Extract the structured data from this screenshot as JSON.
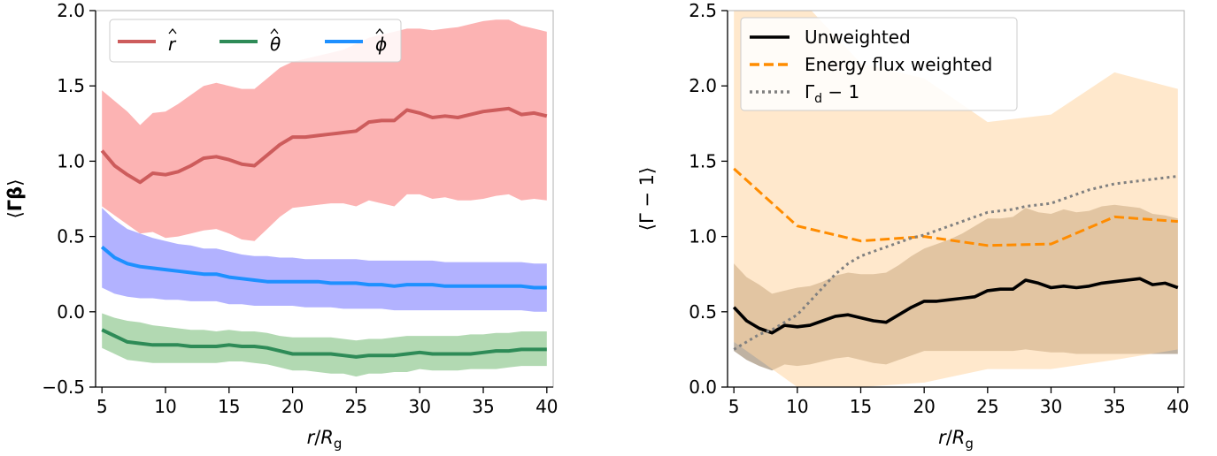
{
  "chart_data": [
    {
      "type": "line",
      "xlabel": "r/R_g",
      "ylabel": "⟨Γβ⟩",
      "xlim": [
        4.5,
        40.5
      ],
      "ylim": [
        -0.5,
        2.0
      ],
      "xticks": [
        5,
        10,
        15,
        20,
        25,
        30,
        35,
        40
      ],
      "yticks": [
        -0.5,
        0.0,
        0.5,
        1.0,
        1.5,
        2.0
      ],
      "ytick_labels": [
        "−0.5",
        "0.0",
        "0.5",
        "1.0",
        "1.5",
        "2.0"
      ],
      "legend_location": "top-left",
      "legend_columns": 3,
      "x": [
        5,
        6,
        7,
        8,
        9,
        10,
        11,
        12,
        13,
        14,
        15,
        16,
        17,
        18,
        19,
        20,
        21,
        22,
        23,
        24,
        25,
        26,
        27,
        28,
        29,
        30,
        31,
        32,
        33,
        34,
        35,
        36,
        37,
        38,
        39,
        40
      ],
      "series": [
        {
          "name": "r̂",
          "color": "#cd5c5c",
          "band_color": "#fa8080",
          "values": [
            1.07,
            0.97,
            0.91,
            0.86,
            0.92,
            0.91,
            0.93,
            0.97,
            1.02,
            1.03,
            1.01,
            0.98,
            0.97,
            1.04,
            1.11,
            1.16,
            1.16,
            1.17,
            1.18,
            1.19,
            1.2,
            1.26,
            1.27,
            1.27,
            1.34,
            1.32,
            1.29,
            1.3,
            1.29,
            1.31,
            1.33,
            1.34,
            1.35,
            1.31,
            1.32,
            1.3
          ],
          "upper": [
            1.47,
            1.4,
            1.33,
            1.24,
            1.32,
            1.33,
            1.38,
            1.44,
            1.5,
            1.52,
            1.5,
            1.48,
            1.48,
            1.55,
            1.62,
            1.66,
            1.68,
            1.7,
            1.72,
            1.74,
            1.78,
            1.82,
            1.84,
            1.86,
            1.88,
            1.88,
            1.87,
            1.88,
            1.89,
            1.91,
            1.93,
            1.94,
            1.94,
            1.9,
            1.88,
            1.86
          ],
          "lower": [
            0.7,
            0.64,
            0.58,
            0.52,
            0.53,
            0.49,
            0.5,
            0.52,
            0.54,
            0.55,
            0.52,
            0.48,
            0.47,
            0.55,
            0.63,
            0.69,
            0.7,
            0.71,
            0.72,
            0.72,
            0.7,
            0.74,
            0.72,
            0.7,
            0.78,
            0.78,
            0.75,
            0.76,
            0.74,
            0.74,
            0.75,
            0.77,
            0.78,
            0.74,
            0.75,
            0.74
          ]
        },
        {
          "name": "θ̂",
          "color": "#2e8b57",
          "band_color": "#7fbf7f",
          "values": [
            -0.12,
            -0.16,
            -0.2,
            -0.21,
            -0.22,
            -0.22,
            -0.22,
            -0.23,
            -0.23,
            -0.23,
            -0.22,
            -0.23,
            -0.23,
            -0.24,
            -0.26,
            -0.28,
            -0.28,
            -0.28,
            -0.28,
            -0.29,
            -0.3,
            -0.29,
            -0.29,
            -0.29,
            -0.28,
            -0.27,
            -0.28,
            -0.28,
            -0.28,
            -0.28,
            -0.27,
            -0.26,
            -0.26,
            -0.25,
            -0.25,
            -0.25
          ],
          "upper": [
            -0.01,
            -0.04,
            -0.06,
            -0.07,
            -0.09,
            -0.1,
            -0.11,
            -0.12,
            -0.12,
            -0.13,
            -0.12,
            -0.13,
            -0.13,
            -0.14,
            -0.16,
            -0.17,
            -0.17,
            -0.17,
            -0.17,
            -0.18,
            -0.19,
            -0.18,
            -0.18,
            -0.17,
            -0.16,
            -0.16,
            -0.16,
            -0.16,
            -0.16,
            -0.15,
            -0.15,
            -0.14,
            -0.14,
            -0.13,
            -0.13,
            -0.13
          ],
          "lower": [
            -0.24,
            -0.28,
            -0.32,
            -0.33,
            -0.34,
            -0.34,
            -0.34,
            -0.34,
            -0.34,
            -0.34,
            -0.33,
            -0.33,
            -0.34,
            -0.35,
            -0.37,
            -0.39,
            -0.39,
            -0.4,
            -0.41,
            -0.41,
            -0.43,
            -0.41,
            -0.41,
            -0.4,
            -0.4,
            -0.38,
            -0.39,
            -0.39,
            -0.39,
            -0.38,
            -0.38,
            -0.38,
            -0.37,
            -0.36,
            -0.36,
            -0.36
          ]
        },
        {
          "name": "ϕ̂",
          "color": "#1e90ff",
          "band_color": "#7f7fff",
          "values": [
            0.43,
            0.36,
            0.32,
            0.3,
            0.29,
            0.28,
            0.27,
            0.26,
            0.25,
            0.25,
            0.23,
            0.22,
            0.21,
            0.2,
            0.2,
            0.2,
            0.2,
            0.2,
            0.19,
            0.19,
            0.19,
            0.18,
            0.18,
            0.17,
            0.18,
            0.18,
            0.18,
            0.17,
            0.17,
            0.17,
            0.17,
            0.17,
            0.17,
            0.17,
            0.16,
            0.16
          ],
          "upper": [
            0.69,
            0.61,
            0.55,
            0.52,
            0.49,
            0.47,
            0.45,
            0.44,
            0.42,
            0.42,
            0.4,
            0.38,
            0.37,
            0.37,
            0.36,
            0.36,
            0.35,
            0.35,
            0.35,
            0.35,
            0.35,
            0.34,
            0.34,
            0.34,
            0.34,
            0.34,
            0.34,
            0.33,
            0.33,
            0.33,
            0.33,
            0.33,
            0.33,
            0.33,
            0.32,
            0.32
          ],
          "lower": [
            0.16,
            0.12,
            0.1,
            0.09,
            0.09,
            0.08,
            0.08,
            0.07,
            0.07,
            0.07,
            0.05,
            0.05,
            0.04,
            0.04,
            0.04,
            0.04,
            0.03,
            0.03,
            0.03,
            0.02,
            0.02,
            0.02,
            0.02,
            0.01,
            0.01,
            0.01,
            0.01,
            0.01,
            0.01,
            0.01,
            0.01,
            0.01,
            0.01,
            0.01,
            0.0,
            0.0
          ]
        }
      ]
    },
    {
      "type": "line",
      "xlabel": "r/R_g",
      "ylabel": "⟨Γ − 1⟩",
      "xlim": [
        4.5,
        40.5
      ],
      "ylim": [
        0.0,
        2.5
      ],
      "xticks": [
        5,
        10,
        15,
        20,
        25,
        30,
        35,
        40
      ],
      "yticks": [
        0.0,
        0.5,
        1.0,
        1.5,
        2.0,
        2.5
      ],
      "ytick_labels": [
        "0.0",
        "0.5",
        "1.0",
        "1.5",
        "2.0",
        "2.5"
      ],
      "legend_location": "top-left",
      "legend_columns": 1,
      "series": [
        {
          "name": "Unweighted",
          "color": "#000000",
          "style": "solid",
          "band_color": "#8b7355",
          "x": [
            5,
            6,
            7,
            8,
            9,
            10,
            11,
            12,
            13,
            14,
            15,
            16,
            17,
            18,
            19,
            20,
            21,
            22,
            23,
            24,
            25,
            26,
            27,
            28,
            29,
            30,
            31,
            32,
            33,
            34,
            35,
            36,
            37,
            38,
            39,
            40
          ],
          "values": [
            0.53,
            0.44,
            0.39,
            0.36,
            0.41,
            0.4,
            0.41,
            0.44,
            0.47,
            0.48,
            0.46,
            0.44,
            0.43,
            0.48,
            0.53,
            0.57,
            0.57,
            0.58,
            0.59,
            0.6,
            0.64,
            0.65,
            0.65,
            0.71,
            0.69,
            0.66,
            0.67,
            0.66,
            0.67,
            0.69,
            0.7,
            0.71,
            0.72,
            0.68,
            0.69,
            0.66
          ],
          "upper": [
            0.82,
            0.73,
            0.68,
            0.62,
            0.64,
            0.66,
            0.67,
            0.7,
            0.74,
            0.76,
            0.75,
            0.75,
            0.76,
            0.81,
            0.87,
            0.92,
            0.95,
            0.98,
            1.02,
            1.07,
            1.12,
            1.12,
            1.13,
            1.19,
            1.16,
            1.15,
            1.18,
            1.16,
            1.17,
            1.2,
            1.21,
            1.2,
            1.19,
            1.15,
            1.14,
            1.12
          ],
          "lower": [
            0.24,
            0.18,
            0.14,
            0.11,
            0.15,
            0.14,
            0.15,
            0.17,
            0.19,
            0.2,
            0.18,
            0.16,
            0.15,
            0.18,
            0.21,
            0.24,
            0.24,
            0.24,
            0.24,
            0.24,
            0.24,
            0.24,
            0.24,
            0.25,
            0.24,
            0.23,
            0.23,
            0.22,
            0.22,
            0.22,
            0.22,
            0.22,
            0.22,
            0.22,
            0.22,
            0.22
          ]
        },
        {
          "name": "Energy flux weighted",
          "color": "#ff8c00",
          "style": "dashed",
          "band_color": "#ffd5a3",
          "x": [
            5,
            10,
            15,
            20,
            25,
            30,
            35,
            40
          ],
          "values": [
            1.45,
            1.07,
            0.97,
            1.0,
            0.94,
            0.95,
            1.13,
            1.1
          ],
          "upper": [
            2.6,
            2.6,
            2.15,
            2.05,
            1.76,
            1.81,
            2.09,
            1.98
          ],
          "lower": [
            0.3,
            0.0,
            0.0,
            0.03,
            0.12,
            0.12,
            0.18,
            0.25
          ]
        },
        {
          "name": "Γ_d − 1",
          "color": "#808080",
          "style": "dotted",
          "x": [
            5,
            6,
            7,
            8,
            9,
            10,
            11,
            12,
            13,
            14,
            15,
            16,
            17,
            18,
            19,
            20,
            21,
            22,
            23,
            24,
            25,
            26,
            27,
            28,
            29,
            30,
            31,
            32,
            33,
            34,
            35,
            36,
            37,
            38,
            39,
            40
          ],
          "values": [
            0.25,
            0.3,
            0.35,
            0.38,
            0.43,
            0.48,
            0.57,
            0.66,
            0.75,
            0.82,
            0.87,
            0.9,
            0.93,
            0.96,
            0.99,
            1.01,
            1.04,
            1.07,
            1.1,
            1.13,
            1.16,
            1.17,
            1.18,
            1.2,
            1.21,
            1.22,
            1.25,
            1.28,
            1.31,
            1.33,
            1.35,
            1.36,
            1.37,
            1.38,
            1.39,
            1.4
          ]
        }
      ]
    }
  ]
}
